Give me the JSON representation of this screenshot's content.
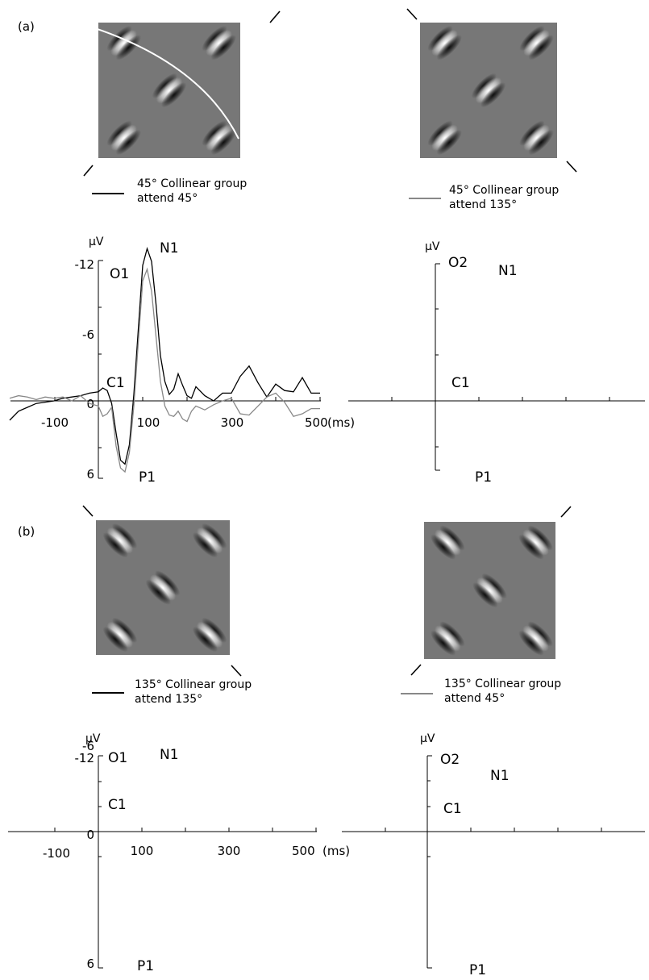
{
  "figure": {
    "panel_labels": [
      "(a)",
      "(b)"
    ],
    "colors": {
      "stim_background": "#777777",
      "black_trace": "#000000",
      "gray_trace": "#888888",
      "contour_line": "#ffffff"
    }
  },
  "panels": {
    "a": {
      "label": "(a)",
      "stimuli": [
        {
          "gabor_orientation_deg": 45,
          "legend_text": [
            "45° Collinear group",
            "attend 45°"
          ],
          "legend_color": "#000000"
        },
        {
          "gabor_orientation_deg": 45,
          "legend_text": [
            "45° Collinear group",
            "attend 135°"
          ],
          "legend_color": "#888888"
        }
      ]
    },
    "b": {
      "label": "(b)",
      "stimuli": [
        {
          "gabor_orientation_deg": 135,
          "legend_text": [
            "135° Collinear group",
            "attend 135°"
          ],
          "legend_color": "#000000"
        },
        {
          "gabor_orientation_deg": 135,
          "legend_text": [
            "135° Collinear group",
            "attend 45°"
          ],
          "legend_color": "#888888"
        }
      ]
    }
  },
  "chart_data": [
    {
      "type": "line",
      "panel": "a",
      "electrode": "O1",
      "ylabel": "μV",
      "xlabel": "(ms)",
      "xlim": [
        -200,
        500
      ],
      "ylim": [
        6,
        -12
      ],
      "x_ticks": [
        -100,
        0,
        100,
        300,
        500
      ],
      "x_tick_labels": [
        "-100",
        "100",
        "300",
        "500"
      ],
      "y_tick_labels": [
        "-12",
        "-6",
        "0",
        "6"
      ],
      "component_labels": [
        "N1",
        "C1",
        "P1"
      ],
      "series": [
        {
          "color": "#000000",
          "x": [
            -200,
            -180,
            -160,
            -140,
            -120,
            -100,
            -80,
            -60,
            -40,
            -20,
            0,
            10,
            20,
            30,
            40,
            50,
            60,
            70,
            80,
            90,
            100,
            110,
            120,
            130,
            140,
            150,
            160,
            170,
            180,
            190,
            200,
            210,
            220,
            240,
            260,
            280,
            300,
            320,
            340,
            360,
            380,
            400,
            420,
            440,
            460,
            480,
            500
          ],
          "y": [
            1.5,
            0.8,
            0.5,
            0.2,
            0.1,
            0.0,
            -0.2,
            -0.3,
            -0.4,
            -0.6,
            -0.7,
            -1.0,
            -0.8,
            0.2,
            2.5,
            4.6,
            4.9,
            3.4,
            -0.5,
            -5.5,
            -10.5,
            -11.8,
            -10.8,
            -7.5,
            -3.5,
            -1.5,
            -0.5,
            -0.9,
            -2.1,
            -1.2,
            -0.4,
            -0.2,
            -1.1,
            -0.4,
            0.0,
            -0.6,
            -0.6,
            -1.9,
            -2.7,
            -1.4,
            -0.3,
            -1.3,
            -0.8,
            -0.7,
            -1.8,
            -0.6,
            -0.6
          ]
        },
        {
          "color": "#888888",
          "x": [
            -200,
            -180,
            -160,
            -140,
            -120,
            -100,
            -80,
            -60,
            -40,
            -20,
            0,
            10,
            20,
            30,
            40,
            50,
            60,
            70,
            80,
            90,
            100,
            110,
            120,
            130,
            140,
            150,
            160,
            170,
            180,
            190,
            200,
            210,
            220,
            240,
            260,
            280,
            300,
            320,
            340,
            360,
            380,
            400,
            420,
            440,
            460,
            480,
            500
          ],
          "y": [
            -0.2,
            -0.4,
            -0.3,
            -0.1,
            -0.3,
            -0.2,
            -0.3,
            0.0,
            -0.4,
            0.2,
            0.4,
            1.2,
            1.0,
            0.5,
            3.5,
            5.2,
            5.5,
            4.0,
            0.4,
            -4.5,
            -9.3,
            -10.2,
            -8.5,
            -5.0,
            -1.5,
            0.4,
            1.1,
            1.2,
            0.8,
            1.4,
            1.6,
            0.8,
            0.4,
            0.7,
            0.3,
            0.0,
            -0.2,
            1.0,
            1.1,
            0.4,
            -0.3,
            -0.6,
            0.1,
            1.2,
            1.0,
            0.6,
            0.6
          ]
        }
      ]
    },
    {
      "type": "line",
      "panel": "a",
      "electrode": "O2",
      "ylabel": "μV",
      "component_labels": [
        "N1",
        "C1",
        "P1"
      ],
      "ylim": [
        6,
        -12
      ],
      "series": []
    },
    {
      "type": "line",
      "panel": "b",
      "electrode": "O1",
      "ylabel": "μV",
      "xlabel": "(ms)",
      "xlim": [
        -200,
        500
      ],
      "ylim": [
        6,
        -12
      ],
      "x_tick_labels": [
        "-100",
        "100",
        "300",
        "500"
      ],
      "y_tick_labels": [
        "-12",
        "-6",
        "0",
        "6"
      ],
      "component_labels": [
        "N1",
        "C1",
        "P1"
      ],
      "series": []
    },
    {
      "type": "line",
      "panel": "b",
      "electrode": "O2",
      "ylabel": "μV",
      "component_labels": [
        "N1",
        "C1",
        "P1"
      ],
      "ylim": [
        6,
        -12
      ],
      "series": []
    }
  ]
}
